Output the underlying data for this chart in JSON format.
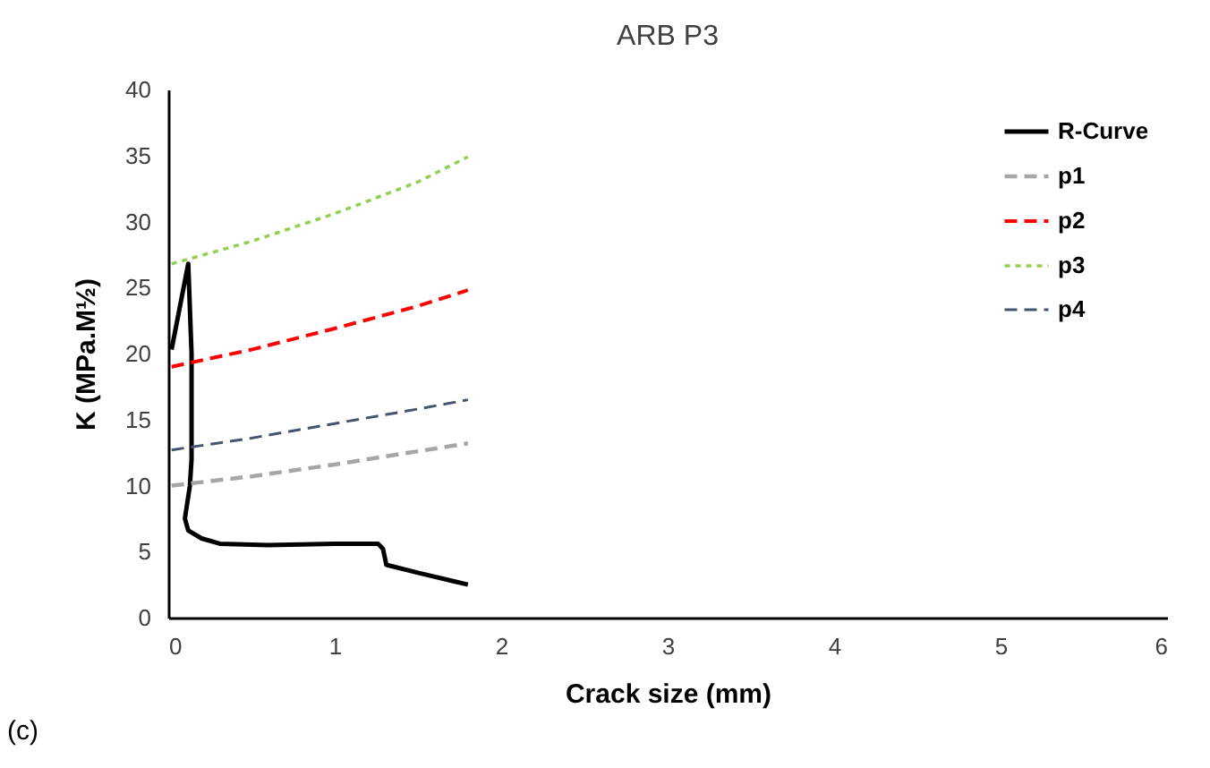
{
  "chart_data": {
    "type": "line",
    "title": "ARB P3",
    "xlabel": "Crack size (mm)",
    "ylabel": "K (MPa.M½)",
    "annotations": [
      "(c)"
    ],
    "xlim": [
      0,
      6
    ],
    "xticks": [
      0,
      1,
      2,
      3,
      4,
      5,
      6
    ],
    "ylim": [
      0,
      40
    ],
    "yticks": [
      0,
      5,
      10,
      15,
      20,
      25,
      30,
      35,
      40
    ],
    "grid": false,
    "legend": "top right",
    "series": [
      {
        "name": "R-Curve",
        "color": "#000000",
        "line_style": "solid",
        "x": [
          0.02,
          0.12,
          0.14,
          0.14,
          0.13,
          0.1,
          0.12,
          0.2,
          0.31,
          0.6,
          1.0,
          1.26,
          1.29,
          1.31,
          1.5,
          1.8
        ],
        "values": [
          20.3,
          26.8,
          20.0,
          12.0,
          10.0,
          7.5,
          6.6,
          6.0,
          5.6,
          5.5,
          5.6,
          5.6,
          5.2,
          4.0,
          3.4,
          2.5
        ]
      },
      {
        "name": "p1",
        "color": "#a6a6a6",
        "line_style": "dashed",
        "x": [
          0.02,
          0.5,
          1.0,
          1.5,
          1.8
        ],
        "values": [
          10.0,
          10.7,
          11.6,
          12.6,
          13.2
        ]
      },
      {
        "name": "p2",
        "color": "#ff0000",
        "line_style": "dashed",
        "x": [
          0.02,
          0.5,
          1.0,
          1.5,
          1.8
        ],
        "values": [
          19.0,
          20.3,
          21.9,
          23.6,
          24.8
        ]
      },
      {
        "name": "p3",
        "color": "#92d050",
        "line_style": "dotted",
        "x": [
          0.02,
          0.5,
          1.0,
          1.5,
          1.8
        ],
        "values": [
          26.8,
          28.5,
          30.6,
          33.0,
          34.9
        ]
      },
      {
        "name": "p4",
        "color": "#44546a",
        "line_style": "dashed",
        "x": [
          0.02,
          0.5,
          1.0,
          1.5,
          1.8
        ],
        "values": [
          12.7,
          13.6,
          14.7,
          15.8,
          16.5
        ]
      }
    ]
  }
}
